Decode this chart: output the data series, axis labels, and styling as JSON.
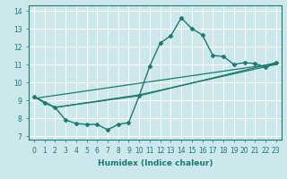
{
  "title": "",
  "xlabel": "Humidex (Indice chaleur)",
  "bg_color": "#cce8ec",
  "grid_color": "#ffffff",
  "line_color": "#1a7a6e",
  "xlim": [
    -0.5,
    23.5
  ],
  "ylim": [
    6.8,
    14.3
  ],
  "xticks": [
    0,
    1,
    2,
    3,
    4,
    5,
    6,
    7,
    8,
    9,
    10,
    11,
    12,
    13,
    14,
    15,
    16,
    17,
    18,
    19,
    20,
    21,
    22,
    23
  ],
  "yticks": [
    7,
    8,
    9,
    10,
    11,
    12,
    13,
    14
  ],
  "series": [
    {
      "x": [
        0,
        1,
        2,
        3,
        4,
        5,
        6,
        7,
        8,
        9,
        10,
        11,
        12,
        13,
        14,
        15,
        16,
        17,
        18,
        19,
        20,
        21,
        22,
        23
      ],
      "y": [
        9.2,
        8.85,
        8.6,
        7.9,
        7.7,
        7.65,
        7.65,
        7.35,
        7.65,
        7.75,
        9.25,
        10.9,
        12.2,
        12.6,
        13.6,
        13.0,
        12.65,
        11.5,
        11.45,
        11.0,
        11.1,
        11.05,
        10.85,
        11.1
      ],
      "marker": "D",
      "markersize": 2.5,
      "linewidth": 1.0
    },
    {
      "x": [
        0,
        2,
        10,
        23
      ],
      "y": [
        9.2,
        8.6,
        9.25,
        11.1
      ],
      "marker": null,
      "markersize": 0,
      "linewidth": 0.9
    },
    {
      "x": [
        0,
        2,
        10,
        23
      ],
      "y": [
        9.2,
        8.6,
        9.3,
        11.0
      ],
      "marker": null,
      "markersize": 0,
      "linewidth": 0.9
    },
    {
      "x": [
        0,
        23
      ],
      "y": [
        9.1,
        11.05
      ],
      "marker": null,
      "markersize": 0,
      "linewidth": 0.9
    }
  ]
}
